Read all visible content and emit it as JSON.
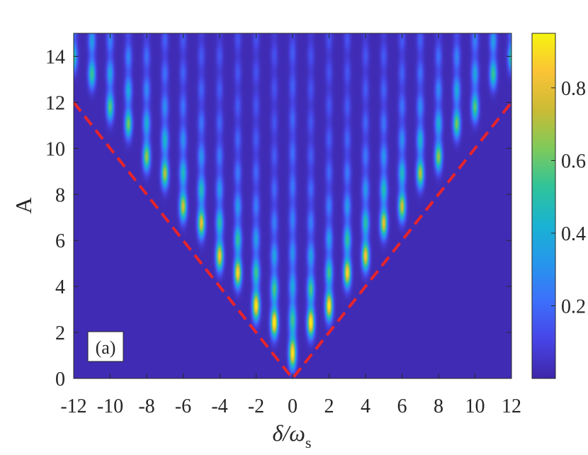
{
  "chart_data": {
    "type": "heatmap",
    "title": "",
    "panel_label": "(a)",
    "xlabel": {
      "main": "δ/ω",
      "sub": "s"
    },
    "ylabel": "A",
    "xlim": [
      -12,
      12
    ],
    "ylim": [
      0,
      15
    ],
    "xticks": [
      -12,
      -10,
      -8,
      -6,
      -4,
      -2,
      0,
      2,
      4,
      6,
      8,
      10,
      12
    ],
    "yticks": [
      0,
      2,
      4,
      6,
      8,
      10,
      12,
      14
    ],
    "colorbar": {
      "range": [
        0,
        0.95
      ],
      "ticks": [
        0.2,
        0.4,
        0.6,
        0.8
      ],
      "colormap": "parula",
      "colors": [
        "#3e26a8",
        "#4744e6",
        "#3d6ffb",
        "#2796ec",
        "#1ab2d3",
        "#30c39a",
        "#7fca5a",
        "#cbbb35",
        "#fbc336",
        "#f6f50f"
      ]
    },
    "boundary_lines": {
      "style": "dashed",
      "color": "#e8242b",
      "points": [
        [
          -12,
          12
        ],
        [
          0,
          0
        ],
        [
          12,
          12
        ]
      ]
    },
    "peaks_on_axis": [
      {
        "delta": 0,
        "A": 1.1,
        "value": 0.95
      },
      {
        "delta": 0,
        "A": 3.8,
        "value": 0.55
      },
      {
        "delta": 0,
        "A": 5.5,
        "value": 0.35
      }
    ],
    "peaks_near_boundary": [
      {
        "delta": 1,
        "A": 1.8,
        "value": 0.85
      },
      {
        "delta": 2,
        "A": 3.1,
        "value": 0.8
      },
      {
        "delta": 3,
        "A": 4.2,
        "value": 0.72
      },
      {
        "delta": 4,
        "A": 5.3,
        "value": 0.65
      },
      {
        "delta": 5,
        "A": 6.4,
        "value": 0.6
      },
      {
        "delta": 6,
        "A": 7.5,
        "value": 0.55
      },
      {
        "delta": 7,
        "A": 8.6,
        "value": 0.5
      },
      {
        "delta": 8,
        "A": 9.7,
        "value": 0.45
      },
      {
        "delta": 9,
        "A": 10.8,
        "value": 0.42
      },
      {
        "delta": 10,
        "A": 11.9,
        "value": 0.38
      },
      {
        "delta": 11,
        "A": 13.0,
        "value": 0.35
      }
    ]
  }
}
